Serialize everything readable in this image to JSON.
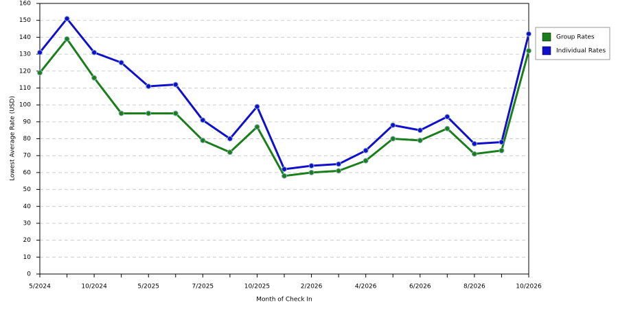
{
  "chart_data": {
    "type": "line",
    "x_label": "Month of Check In",
    "y_label": "Lowest Average Rate (USD)",
    "categories": [
      "5/2024",
      null,
      "10/2024",
      null,
      "5/2025",
      null,
      "7/2025",
      null,
      "10/2025",
      null,
      "2/2026",
      null,
      "4/2026",
      null,
      "6/2026",
      null,
      "8/2026",
      null,
      "10/2026"
    ],
    "series": [
      {
        "name": "Group Rates",
        "color": "#1a7f1a",
        "values": [
          119,
          139,
          116,
          95,
          95,
          95,
          79,
          72,
          87,
          58,
          60,
          61,
          67,
          80,
          79,
          86,
          71,
          73,
          132
        ]
      },
      {
        "name": "Individual Rates",
        "color": "#1010cc",
        "values": [
          131,
          151,
          131,
          125,
          111,
          112,
          91,
          80,
          99,
          62,
          64,
          65,
          73,
          88,
          85,
          93,
          77,
          78,
          142
        ]
      }
    ],
    "ylim": [
      0,
      160
    ],
    "yticks": [
      0,
      10,
      20,
      30,
      40,
      50,
      60,
      70,
      80,
      90,
      100,
      110,
      120,
      130,
      140,
      150,
      160
    ],
    "grid": true,
    "legend": "right"
  }
}
